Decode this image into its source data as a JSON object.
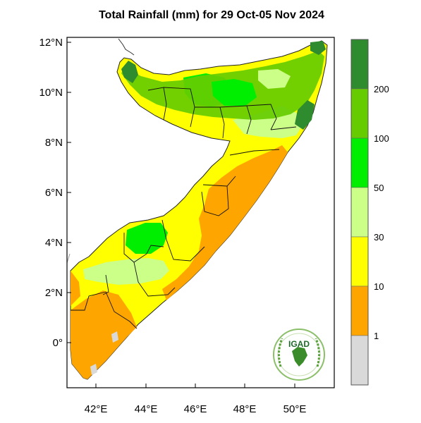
{
  "map": {
    "title": "Total Rainfall (mm) for 29 Oct-05 Nov 2024",
    "latitude_ticks": [
      "12°N",
      "10°N",
      "8°N",
      "6°N",
      "4°N",
      "2°N",
      "0°"
    ],
    "longitude_ticks": [
      "42°E",
      "44°E",
      "46°E",
      "48°E",
      "50°E"
    ],
    "legend": {
      "labels": [
        "200",
        "100",
        "50",
        "30",
        "10",
        "1"
      ],
      "bins": [
        {
          "range": ">200",
          "color": "#2e8b2e"
        },
        {
          "range": "100-200",
          "color": "#66cc00"
        },
        {
          "range": "50-100",
          "color": "#00ee00"
        },
        {
          "range": "30-50",
          "color": "#ccff88"
        },
        {
          "range": "10-30",
          "color": "#ffff00"
        },
        {
          "range": "1-10",
          "color": "#ffa500"
        },
        {
          "range": "<1",
          "color": "#d9d9d9"
        }
      ]
    },
    "logo": {
      "text": "IGAD",
      "icon": "igad-emblem-icon"
    }
  }
}
